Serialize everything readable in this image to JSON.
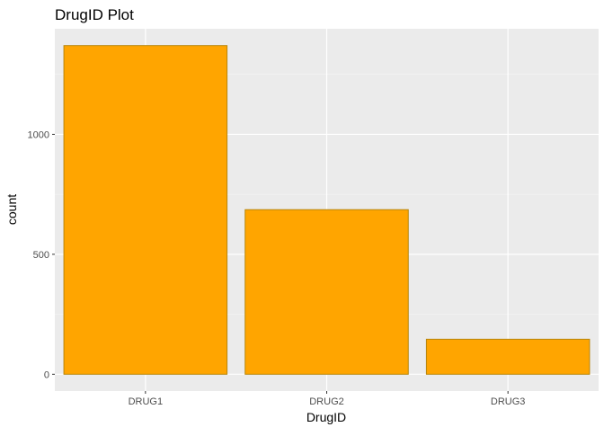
{
  "chart_data": {
    "type": "bar",
    "title": "DrugID Plot",
    "xlabel": "DrugID",
    "ylabel": "count",
    "categories": [
      "DRUG1",
      "DRUG2",
      "DRUG3"
    ],
    "values": [
      1370,
      686,
      146
    ],
    "ylim": [
      -70,
      1440
    ],
    "yticks": [
      0,
      500,
      1000
    ],
    "grid": true,
    "legend": "none",
    "colors": {
      "bar_fill": "#FFA500",
      "bar_stroke": "#B8860B",
      "panel_background": "#EBEBEB",
      "grid_major": "#FFFFFF",
      "grid_minor": "#F5F5F5"
    }
  }
}
